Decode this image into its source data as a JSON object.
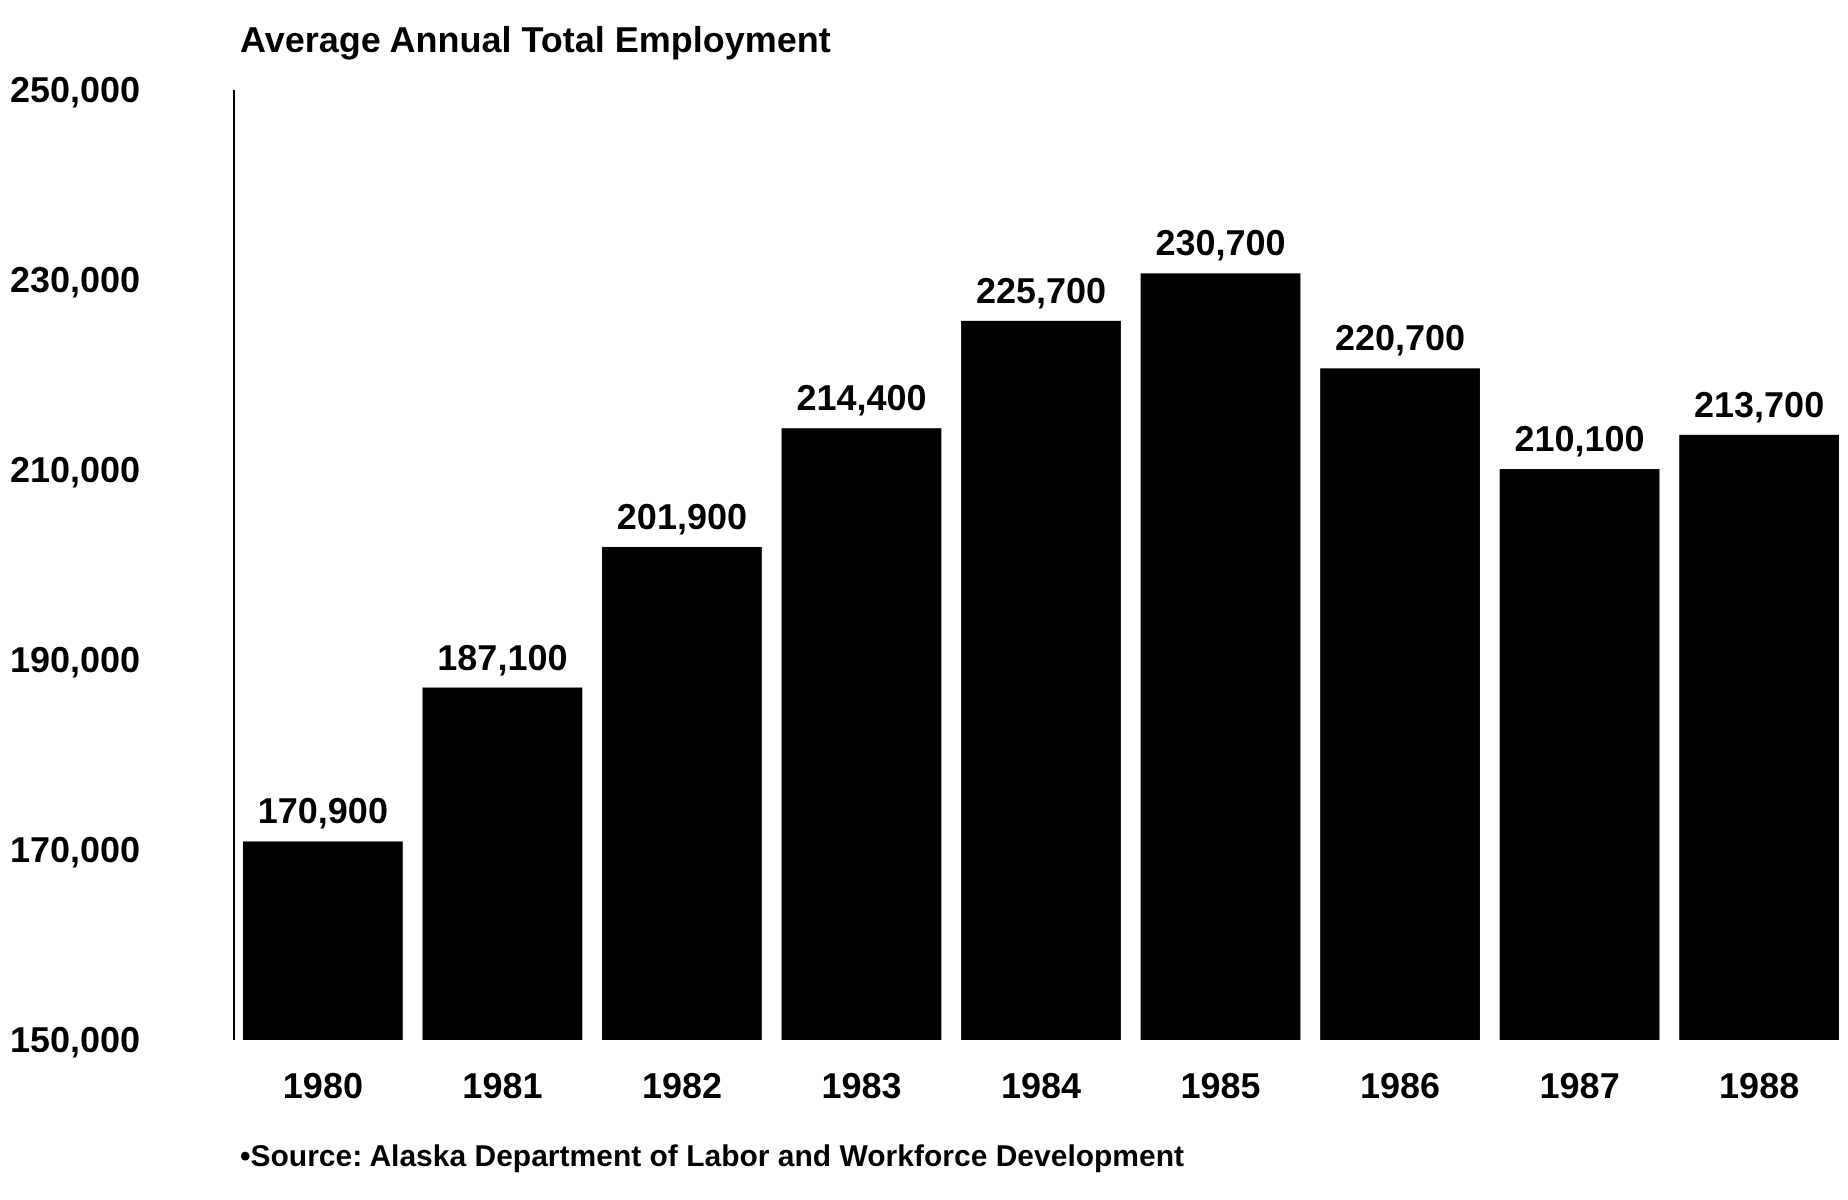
{
  "chart_data": {
    "type": "bar",
    "title": "Average Annual Total Employment",
    "categories": [
      "1980",
      "1981",
      "1982",
      "1983",
      "1984",
      "1985",
      "1986",
      "1987",
      "1988"
    ],
    "values": [
      170900,
      187100,
      201900,
      214400,
      225700,
      230700,
      220700,
      210100,
      213700
    ],
    "color": "#000000",
    "ylim": [
      150000,
      250000
    ],
    "yticks": [
      {
        "value": 150000,
        "label": "150,000"
      },
      {
        "value": 170000,
        "label": "170,000"
      },
      {
        "value": 190000,
        "label": "190,000"
      },
      {
        "value": 210000,
        "label": "210,000"
      },
      {
        "value": 230000,
        "label": "230,000"
      },
      {
        "value": 250000,
        "label": "250,000"
      }
    ],
    "value_labels": [
      "170,900",
      "187,100",
      "201,900",
      "214,400",
      "225,700",
      "230,700",
      "220,700",
      "210,100",
      "213,700"
    ],
    "annotations": [
      "•Source: Alaska Department of Labor and Workforce Development"
    ]
  }
}
